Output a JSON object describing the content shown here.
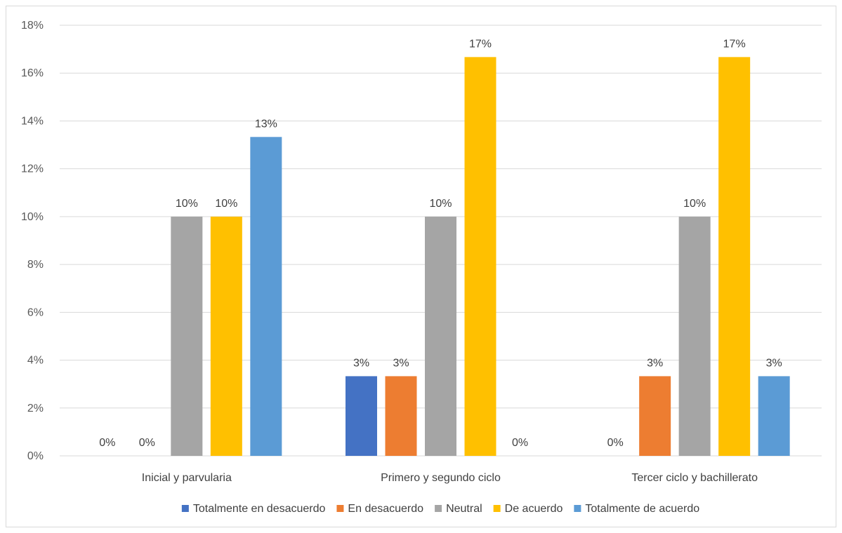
{
  "chart_data": {
    "type": "bar",
    "categories": [
      "Inicial y parvularia",
      "Primero y segundo ciclo",
      "Tercer ciclo y bachillerato"
    ],
    "series": [
      {
        "name": "Totalmente en desacuerdo",
        "color": "#4472c4",
        "values": [
          0,
          3.33,
          0
        ],
        "labels": [
          "0%",
          "3%",
          "0%"
        ]
      },
      {
        "name": "En desacuerdo",
        "color": "#ed7d31",
        "values": [
          0,
          3.33,
          3.33
        ],
        "labels": [
          "0%",
          "3%",
          "3%"
        ]
      },
      {
        "name": "Neutral",
        "color": "#a5a5a5",
        "values": [
          10,
          10,
          10
        ],
        "labels": [
          "10%",
          "10%",
          "10%"
        ]
      },
      {
        "name": "De acuerdo",
        "color": "#ffc000",
        "values": [
          10,
          16.67,
          16.67
        ],
        "labels": [
          "10%",
          "17%",
          "17%"
        ]
      },
      {
        "name": "Totalmente de acuerdo",
        "color": "#5b9bd5",
        "values": [
          13.33,
          0,
          3.33
        ],
        "labels": [
          "13%",
          "0%",
          "3%"
        ]
      }
    ],
    "ylim": [
      0,
      18
    ],
    "yticks": [
      "0%",
      "2%",
      "4%",
      "6%",
      "8%",
      "10%",
      "12%",
      "14%",
      "16%",
      "18%"
    ],
    "grid": true,
    "legend_position": "bottom",
    "title": "",
    "xlabel": "",
    "ylabel": ""
  }
}
